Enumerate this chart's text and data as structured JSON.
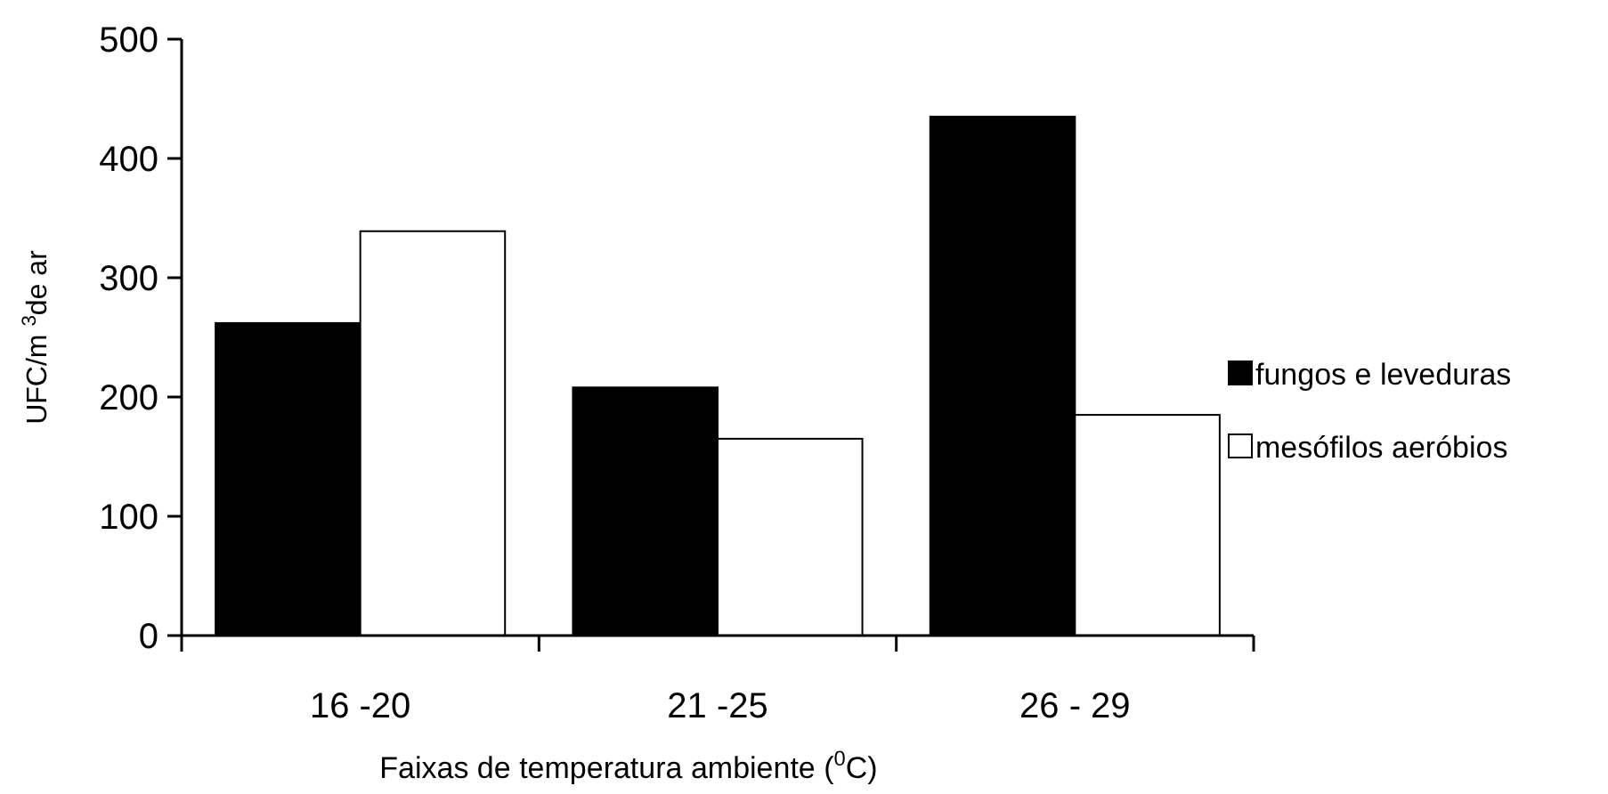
{
  "chart_data": {
    "type": "bar",
    "xlabel": "Faixas de temperatura ambiente ($^{0}$C)",
    "ylabel": "UFC/m $^{3}$de ar",
    "categories": [
      "16 -20",
      "21 -25",
      "26 - 29"
    ],
    "series": [
      {
        "name": "fungos e leveduras",
        "color": "#000000",
        "values": [
          262,
          208,
          435
        ]
      },
      {
        "name": "mesófilos aeróbios",
        "color": "#ffffff",
        "values": [
          339,
          165,
          185
        ]
      }
    ],
    "ylim": [
      0,
      500
    ],
    "yticks": [
      0,
      100,
      200,
      300,
      400,
      500
    ],
    "grid": false,
    "legend": "right"
  }
}
